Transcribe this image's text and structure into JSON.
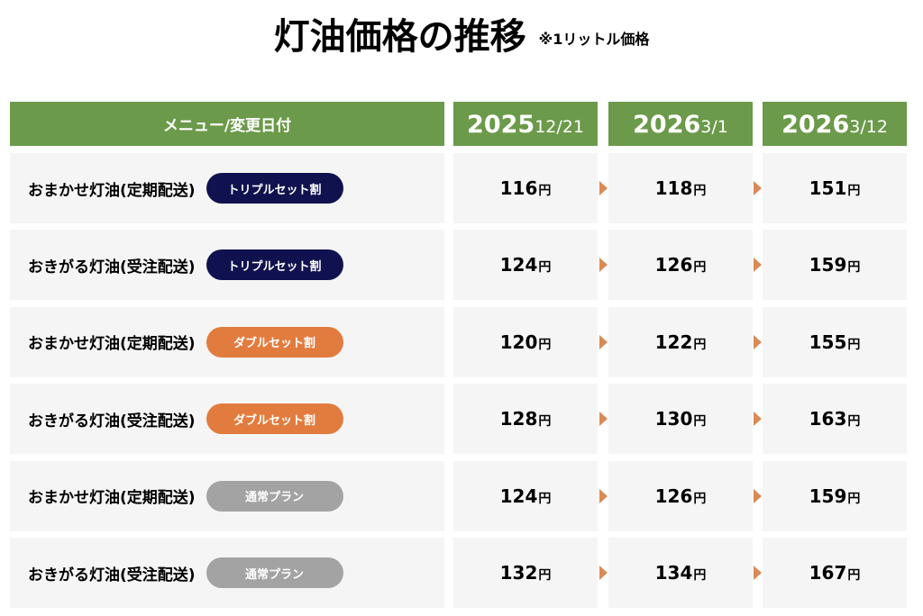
{
  "header": {
    "title": "灯油価格の推移",
    "note": "※1リットル価格"
  },
  "table": {
    "menu_header": "メニュー/変更日付",
    "unit": "円",
    "columns": [
      {
        "year": "2025",
        "date": "12/21"
      },
      {
        "year": "2026",
        "date": "3/1"
      },
      {
        "year": "2026",
        "date": "3/12"
      }
    ],
    "rows": [
      {
        "menu": "おまかせ灯油(定期配送)",
        "badge": {
          "label": "トリプルセット割",
          "color": "#10124f"
        },
        "prices": [
          "116",
          "118",
          "151"
        ]
      },
      {
        "menu": "おきがる灯油(受注配送)",
        "badge": {
          "label": "トリプルセット割",
          "color": "#10124f"
        },
        "prices": [
          "124",
          "126",
          "159"
        ]
      },
      {
        "menu": "おまかせ灯油(定期配送)",
        "badge": {
          "label": "ダブルセット割",
          "color": "#e27c3e"
        },
        "prices": [
          "120",
          "122",
          "155"
        ]
      },
      {
        "menu": "おきがる灯油(受注配送)",
        "badge": {
          "label": "ダブルセット割",
          "color": "#e27c3e"
        },
        "prices": [
          "128",
          "130",
          "163"
        ]
      },
      {
        "menu": "おまかせ灯油(定期配送)",
        "badge": {
          "label": "通常プラン",
          "color": "#a3a3a3"
        },
        "prices": [
          "124",
          "126",
          "159"
        ]
      },
      {
        "menu": "おきがる灯油(受注配送)",
        "badge": {
          "label": "通常プラン",
          "color": "#a3a3a3"
        },
        "prices": [
          "132",
          "134",
          "167"
        ]
      }
    ]
  }
}
